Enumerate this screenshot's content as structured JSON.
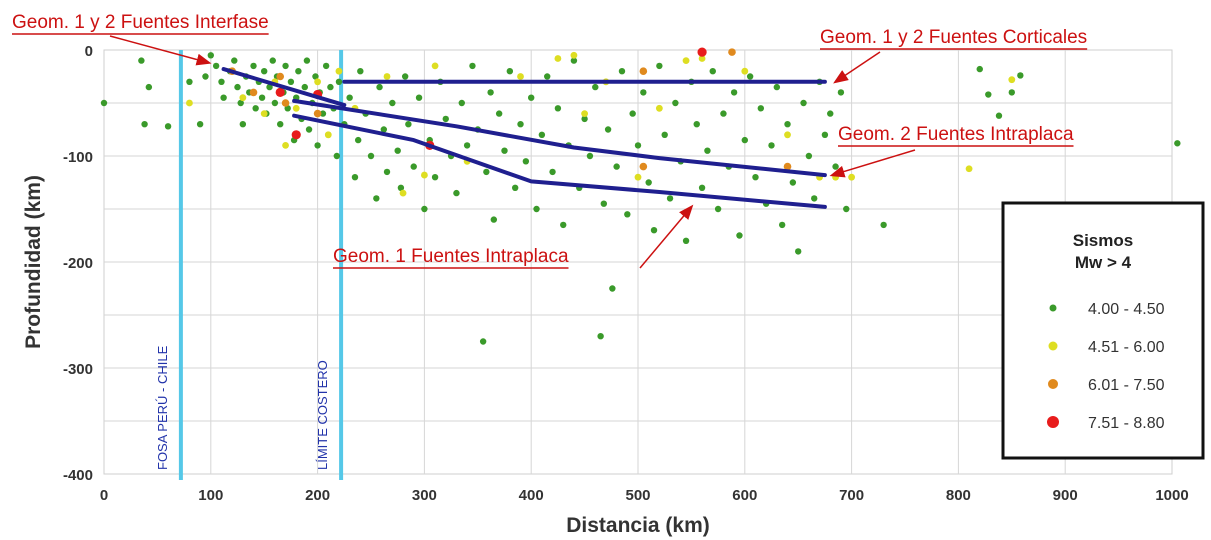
{
  "chart_data": {
    "type": "scatter",
    "xlabel": "Distancia (km)",
    "ylabel": "Profundidad (km)",
    "xlim": [
      0,
      1000
    ],
    "ylim": [
      -400,
      0
    ],
    "xticks": [
      "0",
      "100",
      "200",
      "300",
      "400",
      "500",
      "600",
      "700",
      "800",
      "900",
      "1000"
    ],
    "yticks": [
      "0",
      "-100",
      "-200",
      "-300",
      "-400"
    ],
    "grid": true,
    "legend": {
      "title_line1": "Sismos",
      "title_line2": "Mw > 4",
      "placement": "right",
      "entries": [
        {
          "label": "4.00 - 4.50",
          "color": "#3a9a2a"
        },
        {
          "label": "4.51 - 6.00",
          "color": "#dede22"
        },
        {
          "label": "6.01 - 7.50",
          "color": "#e08a1e"
        },
        {
          "label": "7.51 - 8.80",
          "color": "#e81c1c"
        }
      ]
    },
    "vertical_lines": [
      {
        "x": 72,
        "label": "FOSA PERÚ - CHILE",
        "color": "#55c8e8"
      },
      {
        "x": 222,
        "label": "LÍMITE COSTERO",
        "color": "#55c8e8"
      }
    ],
    "geometries": [
      {
        "color": "#1f1f8f",
        "points": [
          [
            112,
            -18
          ],
          [
            225,
            -52
          ]
        ]
      },
      {
        "color": "#1f1f8f",
        "points": [
          [
            225,
            -30
          ],
          [
            675,
            -30
          ]
        ]
      },
      {
        "color": "#1f1f8f",
        "points": [
          [
            178,
            -48
          ],
          [
            330,
            -72
          ],
          [
            440,
            -92
          ],
          [
            520,
            -102
          ],
          [
            675,
            -118
          ]
        ]
      },
      {
        "color": "#1f1f8f",
        "points": [
          [
            178,
            -62
          ],
          [
            290,
            -85
          ],
          [
            400,
            -124
          ],
          [
            520,
            -134
          ],
          [
            675,
            -148
          ]
        ]
      }
    ],
    "annotations": [
      {
        "text": "Geom. 1 y 2 Fuentes Interfase",
        "target": [
          98,
          -12
        ]
      },
      {
        "text": "Geom. 1 y 2 Fuentes Corticales",
        "target": [
          685,
          -30
        ]
      },
      {
        "text": "Geom. 2 Fuentes Intraplaca",
        "target": [
          682,
          -118
        ]
      },
      {
        "text": "Geom. 1 Fuentes Intraplaca",
        "target": [
          550,
          -148
        ]
      }
    ],
    "series": [
      {
        "name": "4.00 - 4.50",
        "color": "#3a9a2a",
        "points": [
          [
            0,
            -50
          ],
          [
            35,
            -10
          ],
          [
            42,
            -35
          ],
          [
            38,
            -70
          ],
          [
            60,
            -72
          ],
          [
            80,
            -30
          ],
          [
            90,
            -70
          ],
          [
            95,
            -25
          ],
          [
            100,
            -5
          ],
          [
            105,
            -15
          ],
          [
            110,
            -30
          ],
          [
            112,
            -45
          ],
          [
            118,
            -20
          ],
          [
            122,
            -10
          ],
          [
            125,
            -35
          ],
          [
            128,
            -50
          ],
          [
            130,
            -70
          ],
          [
            133,
            -25
          ],
          [
            136,
            -40
          ],
          [
            140,
            -15
          ],
          [
            142,
            -55
          ],
          [
            145,
            -30
          ],
          [
            148,
            -45
          ],
          [
            150,
            -20
          ],
          [
            152,
            -60
          ],
          [
            155,
            -35
          ],
          [
            158,
            -10
          ],
          [
            160,
            -50
          ],
          [
            162,
            -25
          ],
          [
            165,
            -70
          ],
          [
            168,
            -40
          ],
          [
            170,
            -15
          ],
          [
            172,
            -55
          ],
          [
            175,
            -30
          ],
          [
            178,
            -85
          ],
          [
            180,
            -45
          ],
          [
            182,
            -20
          ],
          [
            185,
            -65
          ],
          [
            188,
            -35
          ],
          [
            190,
            -10
          ],
          [
            192,
            -75
          ],
          [
            195,
            -50
          ],
          [
            198,
            -25
          ],
          [
            200,
            -90
          ],
          [
            202,
            -40
          ],
          [
            205,
            -60
          ],
          [
            208,
            -15
          ],
          [
            210,
            -80
          ],
          [
            212,
            -35
          ],
          [
            215,
            -55
          ],
          [
            218,
            -100
          ],
          [
            220,
            -30
          ],
          [
            225,
            -70
          ],
          [
            230,
            -45
          ],
          [
            235,
            -120
          ],
          [
            238,
            -85
          ],
          [
            240,
            -20
          ],
          [
            245,
            -60
          ],
          [
            250,
            -100
          ],
          [
            255,
            -140
          ],
          [
            258,
            -35
          ],
          [
            262,
            -75
          ],
          [
            265,
            -115
          ],
          [
            270,
            -50
          ],
          [
            275,
            -95
          ],
          [
            278,
            -130
          ],
          [
            282,
            -25
          ],
          [
            285,
            -70
          ],
          [
            290,
            -110
          ],
          [
            295,
            -45
          ],
          [
            300,
            -150
          ],
          [
            305,
            -85
          ],
          [
            310,
            -120
          ],
          [
            315,
            -30
          ],
          [
            320,
            -65
          ],
          [
            325,
            -100
          ],
          [
            330,
            -135
          ],
          [
            335,
            -50
          ],
          [
            340,
            -90
          ],
          [
            345,
            -15
          ],
          [
            350,
            -75
          ],
          [
            355,
            -275
          ],
          [
            358,
            -115
          ],
          [
            362,
            -40
          ],
          [
            365,
            -160
          ],
          [
            370,
            -60
          ],
          [
            375,
            -95
          ],
          [
            380,
            -20
          ],
          [
            385,
            -130
          ],
          [
            390,
            -70
          ],
          [
            395,
            -105
          ],
          [
            400,
            -45
          ],
          [
            405,
            -150
          ],
          [
            410,
            -80
          ],
          [
            415,
            -25
          ],
          [
            420,
            -115
          ],
          [
            425,
            -55
          ],
          [
            430,
            -165
          ],
          [
            435,
            -90
          ],
          [
            440,
            -10
          ],
          [
            445,
            -130
          ],
          [
            450,
            -65
          ],
          [
            455,
            -100
          ],
          [
            460,
            -35
          ],
          [
            465,
            -270
          ],
          [
            468,
            -145
          ],
          [
            472,
            -75
          ],
          [
            476,
            -225
          ],
          [
            480,
            -110
          ],
          [
            485,
            -20
          ],
          [
            490,
            -155
          ],
          [
            495,
            -60
          ],
          [
            500,
            -90
          ],
          [
            505,
            -40
          ],
          [
            510,
            -125
          ],
          [
            515,
            -170
          ],
          [
            520,
            -15
          ],
          [
            525,
            -80
          ],
          [
            530,
            -140
          ],
          [
            535,
            -50
          ],
          [
            540,
            -105
          ],
          [
            545,
            -180
          ],
          [
            550,
            -30
          ],
          [
            555,
            -70
          ],
          [
            560,
            -130
          ],
          [
            565,
            -95
          ],
          [
            570,
            -20
          ],
          [
            575,
            -150
          ],
          [
            580,
            -60
          ],
          [
            585,
            -110
          ],
          [
            590,
            -40
          ],
          [
            595,
            -175
          ],
          [
            600,
            -85
          ],
          [
            605,
            -25
          ],
          [
            610,
            -120
          ],
          [
            615,
            -55
          ],
          [
            620,
            -145
          ],
          [
            625,
            -90
          ],
          [
            630,
            -35
          ],
          [
            635,
            -165
          ],
          [
            640,
            -70
          ],
          [
            645,
            -125
          ],
          [
            650,
            -190
          ],
          [
            655,
            -50
          ],
          [
            660,
            -100
          ],
          [
            665,
            -140
          ],
          [
            670,
            -30
          ],
          [
            675,
            -80
          ],
          [
            680,
            -60
          ],
          [
            685,
            -110
          ],
          [
            690,
            -40
          ],
          [
            695,
            -150
          ],
          [
            730,
            -165
          ],
          [
            820,
            -18
          ],
          [
            828,
            -42
          ],
          [
            838,
            -62
          ],
          [
            850,
            -40
          ],
          [
            858,
            -24
          ],
          [
            1005,
            -88
          ]
        ]
      },
      {
        "name": "4.51 - 6.00",
        "color": "#dede22",
        "points": [
          [
            80,
            -50
          ],
          [
            130,
            -45
          ],
          [
            150,
            -60
          ],
          [
            160,
            -30
          ],
          [
            170,
            -90
          ],
          [
            180,
            -55
          ],
          [
            200,
            -30
          ],
          [
            210,
            -80
          ],
          [
            220,
            -20
          ],
          [
            235,
            -55
          ],
          [
            265,
            -25
          ],
          [
            280,
            -135
          ],
          [
            300,
            -118
          ],
          [
            310,
            -15
          ],
          [
            340,
            -105
          ],
          [
            390,
            -25
          ],
          [
            425,
            -8
          ],
          [
            440,
            -5
          ],
          [
            450,
            -60
          ],
          [
            470,
            -30
          ],
          [
            500,
            -120
          ],
          [
            520,
            -55
          ],
          [
            545,
            -10
          ],
          [
            560,
            -8
          ],
          [
            600,
            -20
          ],
          [
            640,
            -80
          ],
          [
            670,
            -120
          ],
          [
            685,
            -120
          ],
          [
            700,
            -120
          ],
          [
            810,
            -112
          ],
          [
            850,
            -28
          ]
        ]
      },
      {
        "name": "6.01 - 7.50",
        "color": "#e08a1e",
        "points": [
          [
            120,
            -20
          ],
          [
            140,
            -40
          ],
          [
            165,
            -25
          ],
          [
            170,
            -50
          ],
          [
            200,
            -60
          ],
          [
            505,
            -110
          ],
          [
            505,
            -20
          ],
          [
            588,
            -2
          ],
          [
            640,
            -110
          ]
        ]
      },
      {
        "name": "7.51 - 8.80",
        "color": "#e81c1c",
        "points": [
          [
            165,
            -40
          ],
          [
            180,
            -80
          ],
          [
            200,
            -42
          ],
          [
            305,
            -90
          ],
          [
            560,
            -2
          ]
        ]
      }
    ]
  }
}
